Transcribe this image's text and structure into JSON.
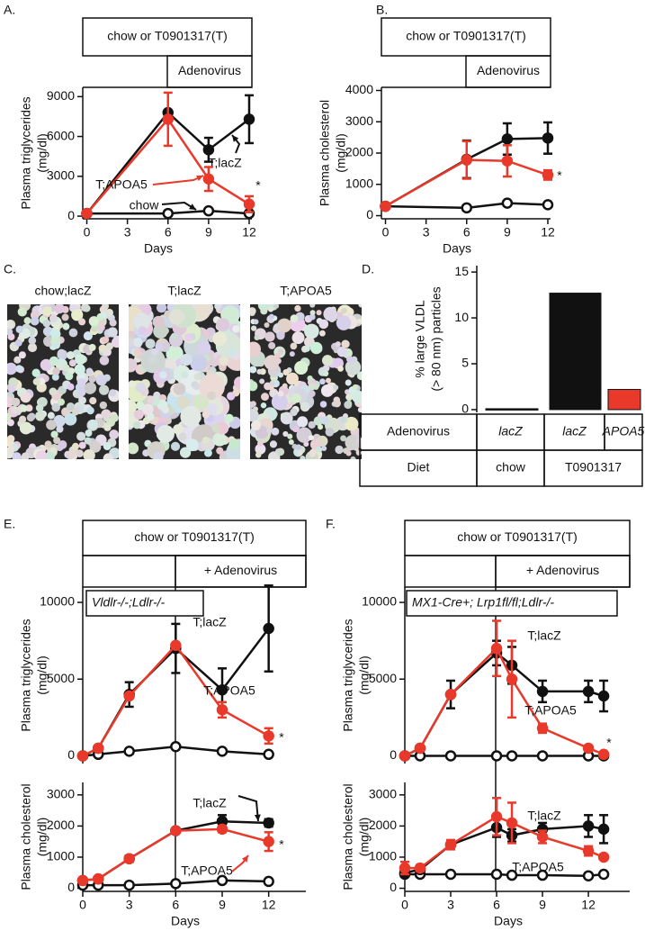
{
  "panel_labels": [
    "A.",
    "B.",
    "C.",
    "D.",
    "E.",
    "F."
  ],
  "headers": [
    {
      "top": "chow or T0901317(T)",
      "bottom": "Adenovirus"
    },
    {
      "top": "chow or T0901317(T)",
      "bottom": "Adenovirus"
    },
    {
      "top": "chow or T0901317(T)",
      "bottom": "+ Adenovirus"
    },
    {
      "top": "chow or T0901317(T)",
      "bottom": "+ Adenovirus"
    }
  ],
  "micrographs": [
    "chow;lacZ",
    "T;lacZ",
    "T;APOA5"
  ],
  "table": {
    "rows": [
      [
        "Adenovirus",
        "lacZ",
        "lacZ",
        "APOA5"
      ],
      [
        "Diet",
        "chow",
        "T0901317"
      ]
    ]
  },
  "chart_data": [
    {
      "type": "line",
      "xlabel": "Days",
      "ylabel": [
        "Plasma triglycerides",
        "(mg/dl)"
      ],
      "x": [
        0,
        6,
        9,
        12
      ],
      "xlim": [
        -0.3,
        12.2
      ],
      "xticks": [
        0,
        3,
        6,
        9,
        12
      ],
      "ylim": [
        -200,
        9700
      ],
      "yticks": [
        0,
        3000,
        6000,
        9000
      ],
      "series": [
        {
          "name": "T;lacZ",
          "color": "#111111",
          "marker": "filled",
          "values": [
            200,
            7800,
            5000,
            7300
          ],
          "errors": [
            null,
            null,
            900,
            1800
          ]
        },
        {
          "name": "T;APOA5",
          "color": "#e8392b",
          "marker": "filled",
          "values": [
            200,
            7300,
            2800,
            900
          ],
          "errors": [
            null,
            2000,
            900,
            600
          ]
        },
        {
          "name": "chow",
          "color": "#111111",
          "marker": "open",
          "values": [
            200,
            200,
            400,
            200
          ],
          "errors": [
            null,
            null,
            null,
            null
          ]
        }
      ],
      "annotations": [
        "*"
      ]
    },
    {
      "type": "line",
      "xlabel": "Days",
      "ylabel": [
        "Plasma cholesterol",
        "(mg/dl)"
      ],
      "x": [
        0,
        6,
        9,
        12
      ],
      "xlim": [
        -0.3,
        12.2
      ],
      "xticks": [
        0,
        3,
        6,
        9,
        12
      ],
      "ylim": [
        -100,
        4100
      ],
      "yticks": [
        0,
        1000,
        2000,
        3000,
        4000
      ],
      "series": [
        {
          "color": "#111111",
          "marker": "filled",
          "values": [
            300,
            1800,
            2450,
            2480
          ],
          "errors": [
            null,
            600,
            500,
            500
          ]
        },
        {
          "color": "#e8392b",
          "marker": "filled",
          "values": [
            300,
            1780,
            1750,
            1300
          ],
          "errors": [
            null,
            600,
            500,
            150
          ]
        },
        {
          "color": "#111111",
          "marker": "open",
          "values": [
            300,
            250,
            400,
            350
          ],
          "errors": [
            null,
            null,
            null,
            null
          ]
        }
      ],
      "annotations": [
        "*"
      ]
    },
    {
      "type": "bar",
      "ylabel": [
        "% large VLDL",
        "(> 80 nm) particles"
      ],
      "values": [
        0.1,
        12.7,
        2.2
      ],
      "colors": [
        "#111111",
        "#111111",
        "#e8392b"
      ],
      "ylim": [
        -0.3,
        15.7
      ],
      "yticks": [
        0,
        5,
        10,
        15
      ]
    },
    {
      "type": "line",
      "ylabel": [
        "Plasma triglycerides",
        "(mg/dl)"
      ],
      "inset_label": "Vldlr-/-;Ldlr-/-",
      "x": [
        0,
        1,
        3,
        6,
        9,
        12
      ],
      "xlim": [
        0,
        14.4
      ],
      "ylim": [
        -500,
        11000
      ],
      "yticks": [
        0,
        5000,
        10000
      ],
      "series": [
        {
          "name": "T;lacZ",
          "color": "#111111",
          "marker": "filled",
          "values": [
            0,
            500,
            4000,
            7000,
            4300,
            8300
          ],
          "errors": [
            null,
            null,
            800,
            1600,
            1400,
            2800
          ]
        },
        {
          "name": "T;APOA5",
          "color": "#e8392b",
          "marker": "filled",
          "values": [
            0,
            500,
            3900,
            7200,
            3000,
            1300
          ],
          "errors": [
            null,
            null,
            null,
            null,
            500,
            500
          ]
        },
        {
          "color": "#111111",
          "marker": "open",
          "values": [
            0,
            100,
            300,
            600,
            300,
            100
          ],
          "errors": [
            null,
            null,
            null,
            null,
            null,
            null
          ]
        }
      ],
      "annotations": [
        "*"
      ]
    },
    {
      "type": "line",
      "xlabel": "Days",
      "ylabel": [
        "Plasma cholesterol",
        "(mg/dl)"
      ],
      "x": [
        0,
        1,
        3,
        6,
        9,
        12
      ],
      "xlim": [
        0,
        14.4
      ],
      "xticks": [
        0,
        3,
        6,
        9,
        12
      ],
      "ylim": [
        -100,
        3400
      ],
      "yticks": [
        0,
        1000,
        2000,
        3000
      ],
      "series": [
        {
          "name": "T;lacZ",
          "color": "#111111",
          "marker": "filled",
          "values": [
            250,
            300,
            950,
            1850,
            2150,
            2100
          ],
          "errors": [
            null,
            null,
            100,
            null,
            200,
            120
          ]
        },
        {
          "name": "T;APOA5",
          "color": "#e8392b",
          "marker": "filled",
          "values": [
            250,
            300,
            950,
            1850,
            1900,
            1500
          ],
          "errors": [
            null,
            null,
            null,
            null,
            100,
            300
          ]
        },
        {
          "color": "#111111",
          "marker": "open",
          "values": [
            100,
            100,
            100,
            150,
            250,
            220
          ],
          "errors": [
            null,
            null,
            null,
            null,
            null,
            null
          ]
        }
      ],
      "annotations": [
        "*"
      ]
    },
    {
      "type": "line",
      "ylabel": [
        "Plasma triglycerides",
        "(mg/dl)"
      ],
      "inset_label": "MX1-Cre+; Lrp1fl/fl;Ldlr-/-",
      "x": [
        0,
        1,
        3,
        6,
        7,
        9,
        12,
        13
      ],
      "xlim": [
        0,
        14.7
      ],
      "ylim": [
        -500,
        11000
      ],
      "yticks": [
        0,
        5000,
        10000
      ],
      "series": [
        {
          "name": "T;lacZ",
          "color": "#111111",
          "marker": "filled",
          "values": [
            0,
            500,
            4000,
            6700,
            5900,
            4200,
            4200,
            3900
          ],
          "errors": [
            null,
            null,
            900,
            800,
            1200,
            700,
            700,
            1000
          ]
        },
        {
          "name": "T;APOA5",
          "color": "#e8392b",
          "marker": "filled",
          "values": [
            0,
            500,
            4000,
            7000,
            5000,
            1800,
            500,
            100
          ],
          "errors": [
            null,
            null,
            null,
            1800,
            2500,
            300,
            null,
            null
          ]
        },
        {
          "color": "#111111",
          "marker": "open",
          "values": [
            0,
            0,
            0,
            0,
            0,
            0,
            0,
            0
          ],
          "errors": [
            null,
            null,
            null,
            null,
            null,
            null,
            null,
            null
          ]
        }
      ],
      "annotations": [
        "*"
      ]
    },
    {
      "type": "line",
      "xlabel": "Days",
      "ylabel": [
        "Plasma cholesterol",
        "(mg/dl)"
      ],
      "x": [
        0,
        1,
        3,
        6,
        7,
        9,
        12,
        13
      ],
      "xlim": [
        0,
        14.7
      ],
      "xticks": [
        0,
        3,
        6,
        9,
        12
      ],
      "ylim": [
        -100,
        3400
      ],
      "yticks": [
        0,
        1000,
        2000,
        3000
      ],
      "series": [
        {
          "name": "T;lacZ",
          "color": "#111111",
          "marker": "filled",
          "values": [
            500,
            600,
            1400,
            1950,
            1700,
            1900,
            2000,
            1900
          ],
          "errors": [
            null,
            null,
            null,
            300,
            200,
            200,
            350,
            450
          ]
        },
        {
          "name": "T;APOA5",
          "color": "#e8392b",
          "marker": "filled",
          "values": [
            650,
            650,
            1400,
            2300,
            2100,
            1650,
            1200,
            1000
          ],
          "errors": [
            200,
            100,
            150,
            600,
            650,
            200,
            150,
            null
          ]
        },
        {
          "color": "#111111",
          "marker": "open",
          "values": [
            450,
            450,
            450,
            450,
            420,
            420,
            400,
            450
          ],
          "errors": [
            null,
            null,
            null,
            null,
            null,
            null,
            null,
            null
          ]
        }
      ]
    }
  ]
}
